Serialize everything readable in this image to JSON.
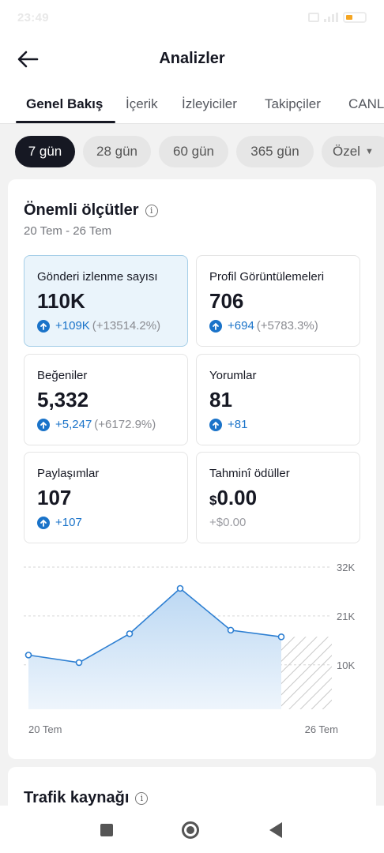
{
  "status_bar": {
    "time": "23:49"
  },
  "header": {
    "title": "Analizler"
  },
  "tabs": [
    {
      "label": "Genel Bakış",
      "active": true
    },
    {
      "label": "İçerik",
      "active": false
    },
    {
      "label": "İzleyiciler",
      "active": false
    },
    {
      "label": "Takipçiler",
      "active": false
    },
    {
      "label": "CANLI",
      "active": false
    }
  ],
  "time_ranges": [
    {
      "label": "7 gün",
      "active": true
    },
    {
      "label": "28 gün",
      "active": false
    },
    {
      "label": "60 gün",
      "active": false
    },
    {
      "label": "365 gün",
      "active": false
    },
    {
      "label": "Özel",
      "active": false
    }
  ],
  "key_metrics": {
    "title": "Önemli ölçütler",
    "date_range": "20 Tem - 26 Tem",
    "items": [
      {
        "label": "Gönderi izlenme sayısı",
        "value": "110K",
        "change": "+109K",
        "change_pct": "(+13514.2%)",
        "selected": true
      },
      {
        "label": "Profil Görüntülemeleri",
        "value": "706",
        "change": "+694",
        "change_pct": "(+5783.3%)",
        "selected": false
      },
      {
        "label": "Beğeniler",
        "value": "5,332",
        "change": "+5,247",
        "change_pct": "(+6172.9%)",
        "selected": false
      },
      {
        "label": "Yorumlar",
        "value": "81",
        "change": "+81",
        "change_pct": "",
        "selected": false
      },
      {
        "label": "Paylaşımlar",
        "value": "107",
        "change": "+107",
        "change_pct": "",
        "selected": false
      },
      {
        "label": "Tahminî ödüller",
        "currency": "$",
        "value": "0.00",
        "change": "+$0.00",
        "change_pct": "",
        "selected": false
      }
    ]
  },
  "chart_data": {
    "type": "area",
    "x": [
      "20 Tem",
      "21 Tem",
      "22 Tem",
      "23 Tem",
      "24 Tem",
      "25 Tem"
    ],
    "values": [
      12200,
      10500,
      17000,
      27200,
      17800,
      16300
    ],
    "y_ticks": [
      "32K",
      "21K",
      "10K"
    ],
    "y_tick_values": [
      32000,
      21000,
      10000
    ],
    "x_tick_labels": [
      "20 Tem",
      "26 Tem"
    ],
    "ylim": [
      0,
      32000
    ],
    "grid": true,
    "pending_last_period": true,
    "colors": {
      "line": "#2d7fd2",
      "fill": "#cfe3f7",
      "marker": "#2d7fd2",
      "hatch": "#c8c8c8"
    }
  },
  "traffic_source": {
    "title": "Trafik kaynağı"
  },
  "colors": {
    "accent": "#1a73c9",
    "active_chip": "#161823",
    "selected_card": "#eaf4fb"
  }
}
